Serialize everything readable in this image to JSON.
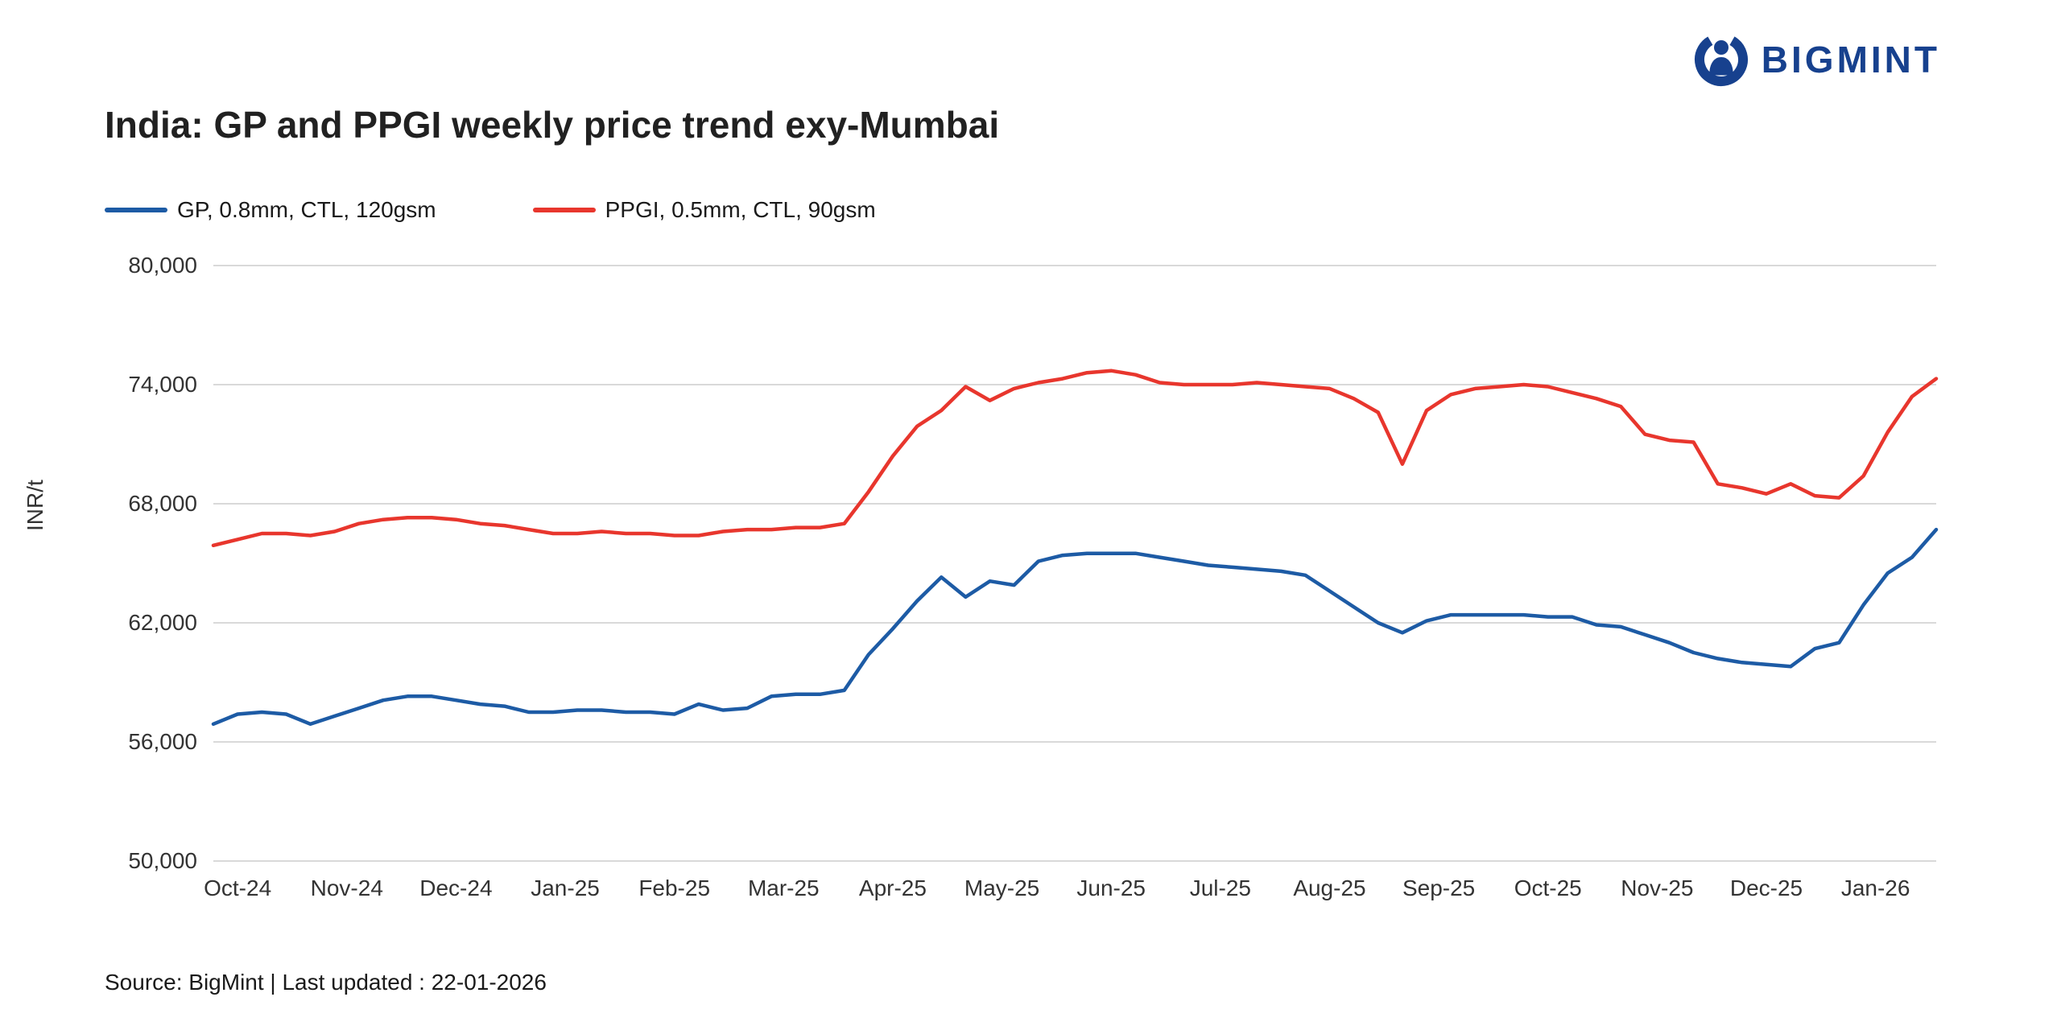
{
  "logo": {
    "text": "BIGMINT",
    "color": "#17418e"
  },
  "title": "India: GP and PPGI weekly price trend exy-Mumbai",
  "source": "Source: BigMint | Last updated : 22-01-2026",
  "chart_data": {
    "type": "line",
    "title": "India: GP and PPGI weekly price trend exy-Mumbai",
    "xlabel": "",
    "ylabel": "INR/t",
    "ylim": [
      50000,
      80000
    ],
    "yticks": [
      50000,
      56000,
      62000,
      68000,
      74000,
      80000
    ],
    "grid": true,
    "legend_position": "top-left",
    "x_labels": [
      "Oct-24",
      "Nov-24",
      "Dec-24",
      "Jan-25",
      "Feb-25",
      "Mar-25",
      "Apr-25",
      "May-25",
      "Jun-25",
      "Jul-25",
      "Aug-25",
      "Sep-25",
      "Oct-25",
      "Nov-25",
      "Dec-25",
      "Jan-26"
    ],
    "series": [
      {
        "name": "GP, 0.8mm, CTL, 120gsm",
        "color": "#1d5ba5",
        "values": [
          56900,
          57400,
          57500,
          57400,
          56900,
          57300,
          57700,
          58100,
          58300,
          58300,
          58100,
          57900,
          57800,
          57500,
          57500,
          57600,
          57600,
          57500,
          57500,
          57400,
          57900,
          57600,
          57700,
          58300,
          58400,
          58400,
          58600,
          60400,
          61700,
          63100,
          64300,
          63300,
          64100,
          63900,
          65100,
          65400,
          65500,
          65500,
          65500,
          65300,
          65100,
          64900,
          64800,
          64700,
          64600,
          64400,
          63600,
          62800,
          62000,
          61500,
          62100,
          62400,
          62400,
          62400,
          62400,
          62300,
          62300,
          61900,
          61800,
          61400,
          61000,
          60500,
          60200,
          60000,
          59900,
          59800,
          60700,
          61000,
          62900,
          64500,
          65300,
          66700
        ]
      },
      {
        "name": "PPGI, 0.5mm, CTL, 90gsm",
        "color": "#e8362d",
        "values": [
          65900,
          66200,
          66500,
          66500,
          66400,
          66600,
          67000,
          67200,
          67300,
          67300,
          67200,
          67000,
          66900,
          66700,
          66500,
          66500,
          66600,
          66500,
          66500,
          66400,
          66400,
          66600,
          66700,
          66700,
          66800,
          66800,
          67000,
          68600,
          70400,
          71900,
          72700,
          73900,
          73200,
          73800,
          74100,
          74300,
          74600,
          74700,
          74500,
          74100,
          74000,
          74000,
          74000,
          74100,
          74000,
          73900,
          73800,
          73300,
          72600,
          70000,
          72700,
          73500,
          73800,
          73900,
          74000,
          73900,
          73600,
          73300,
          72900,
          71500,
          71200,
          71100,
          69000,
          68800,
          68500,
          69000,
          68400,
          68300,
          69400,
          71600,
          73400,
          74300
        ]
      }
    ]
  }
}
